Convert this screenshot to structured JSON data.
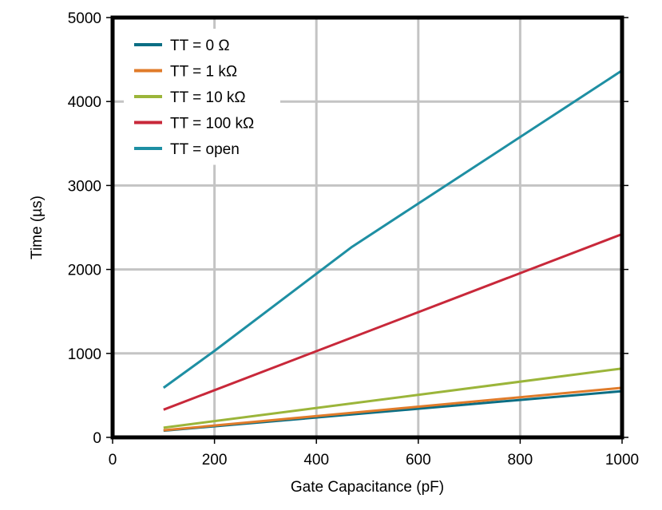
{
  "chart_data": {
    "type": "line",
    "title": "",
    "xlabel": "Gate Capacitance (pF)",
    "ylabel": "Time (µs)",
    "xlim": [
      0,
      1000
    ],
    "ylim": [
      0,
      5000
    ],
    "x_ticks": [
      "0",
      "200",
      "400",
      "600",
      "800",
      "1000"
    ],
    "y_ticks": [
      "0",
      "1000",
      "2000",
      "3000",
      "4000",
      "5000"
    ],
    "grid": true,
    "legend_position": "top-left",
    "series": [
      {
        "name": "TT = 0 Ω",
        "color": "#0b6e84",
        "x": [
          100,
          1000
        ],
        "y": [
          80,
          550
        ]
      },
      {
        "name": "TT = 1 kΩ",
        "color": "#e07b2a",
        "x": [
          100,
          1000
        ],
        "y": [
          85,
          590
        ]
      },
      {
        "name": "TT = 10 kΩ",
        "color": "#9bb53a",
        "x": [
          100,
          1000
        ],
        "y": [
          115,
          820
        ]
      },
      {
        "name": "TT = 100 kΩ",
        "color": "#c8283a",
        "x": [
          100,
          1000
        ],
        "y": [
          330,
          2420
        ]
      },
      {
        "name": "TT = open",
        "color": "#1e8fa3",
        "x": [
          100,
          200,
          470,
          1000
        ],
        "y": [
          590,
          1030,
          2270,
          4370
        ]
      }
    ]
  }
}
